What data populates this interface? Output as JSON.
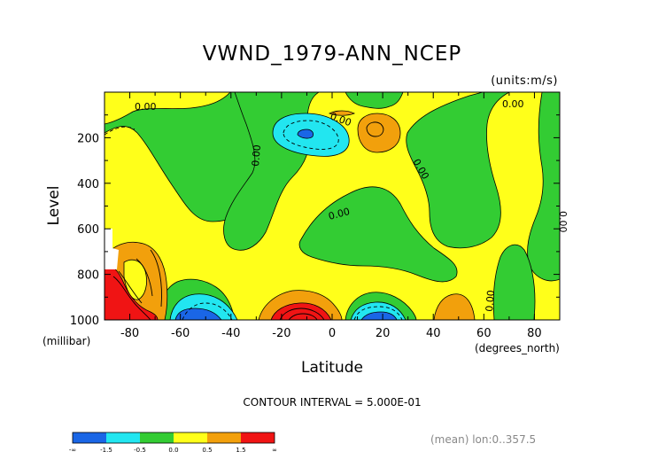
{
  "chart_data": {
    "type": "contour",
    "title": "VWND_1979-ANN_NCEP",
    "units": "(units:m/s)",
    "xlabel": "Latitude",
    "ylabel": "Level",
    "x_units": "(degrees_north)",
    "y_units": "(millibar)",
    "xlim": [
      -90,
      90
    ],
    "ylim": [
      1000,
      0
    ],
    "x_ticks": [
      "-80",
      "-60",
      "-40",
      "-20",
      "0",
      "20",
      "40",
      "60",
      "80"
    ],
    "x_tick_values": [
      -80,
      -60,
      -40,
      -20,
      0,
      20,
      40,
      60,
      80
    ],
    "y_ticks": [
      "200",
      "400",
      "600",
      "800",
      "1000"
    ],
    "y_tick_values": [
      200,
      400,
      600,
      800,
      1000
    ],
    "contour_interval": "CONTOUR INTERVAL = 5.000E-01",
    "mean_note": "(mean) lon:0..357.5",
    "contour_labels": [
      "0.00",
      "0.00",
      "0.00",
      "0.00",
      "0.00",
      "0.00",
      "0.00",
      "0.00"
    ],
    "colorbar": {
      "labels": [
        "-∞",
        "-1.5",
        "-0.5",
        "0.0",
        "0.5",
        "1.5",
        "∞"
      ],
      "bins": [
        {
          "range": "< -1.5",
          "color": "#1a66e6"
        },
        {
          "range": "-1.5 .. -0.5",
          "color": "#22e6f0"
        },
        {
          "range": "-0.5 .. 0.0",
          "color": "#33cc33"
        },
        {
          "range": "0.0 .. 0.5",
          "color": "#ffff1a"
        },
        {
          "range": "0.5 .. 1.5",
          "color": "#f2a00c"
        },
        {
          "range": "> 1.5",
          "color": "#f01414"
        }
      ]
    },
    "features": [
      {
        "type": "min",
        "lat": -10,
        "level": 175,
        "sign": "negative",
        "value_range": "< -1.5"
      },
      {
        "type": "max",
        "lat": 15,
        "level": 165,
        "sign": "positive",
        "value_range": "0.5 .. 1.5"
      },
      {
        "type": "max",
        "lat": -85,
        "level": 950,
        "sign": "positive",
        "value_range": "> 1.5"
      },
      {
        "type": "max",
        "lat": -15,
        "level": 975,
        "sign": "positive",
        "value_range": "> 1.5"
      },
      {
        "type": "min",
        "lat": -55,
        "level": 975,
        "sign": "negative",
        "value_range": "< -1.5"
      },
      {
        "type": "min",
        "lat": 18,
        "level": 985,
        "sign": "negative",
        "value_range": "< -1.5"
      },
      {
        "type": "max",
        "lat": 55,
        "level": 950,
        "sign": "positive",
        "value_range": "0.5 .. 1.5"
      }
    ]
  }
}
